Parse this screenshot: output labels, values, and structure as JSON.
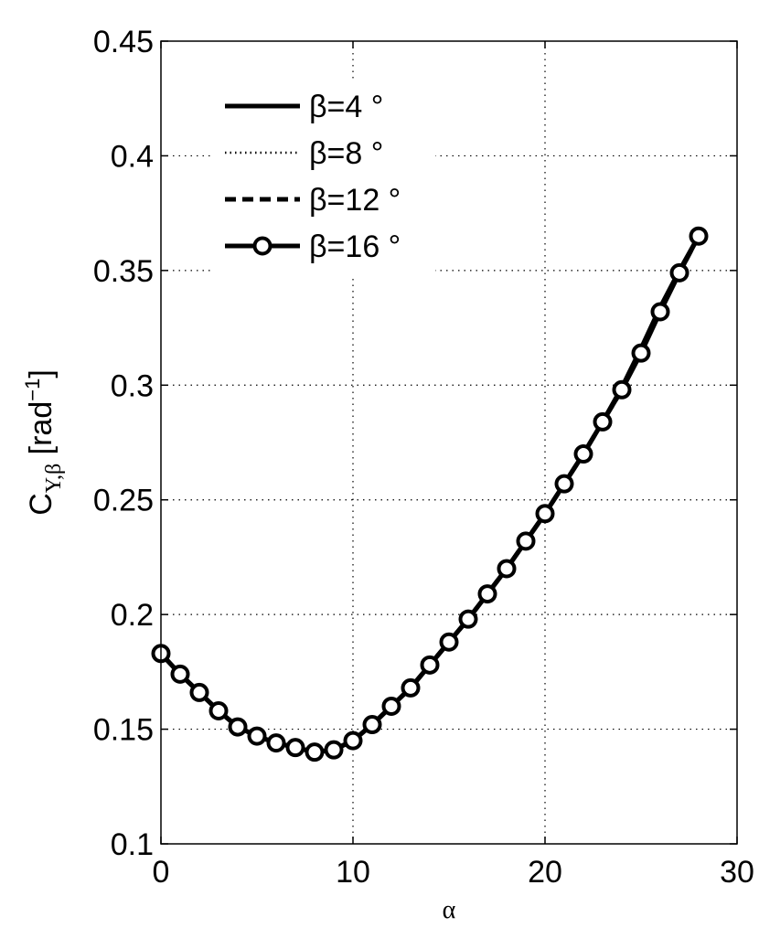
{
  "chart_data": {
    "type": "line",
    "xlabel": "α",
    "ylabel": {
      "main": "C",
      "subscript": "Y,β",
      "unit_open": " [rad",
      "unit_exp": "−1",
      "unit_close": "]"
    },
    "xlim": [
      0,
      30
    ],
    "ylim": [
      0.1,
      0.45
    ],
    "xticks": [
      0,
      10,
      20,
      30
    ],
    "xtick_labels": [
      "0",
      "10",
      "20",
      "30"
    ],
    "yticks": [
      0.1,
      0.15,
      0.2,
      0.25,
      0.3,
      0.35,
      0.4,
      0.45
    ],
    "ytick_labels": [
      "0.1",
      "0.15",
      "0.2",
      "0.25",
      "0.3",
      "0.35",
      "0.4",
      "0.45"
    ],
    "grid": true,
    "legend_placement": "top-left",
    "x": [
      0,
      1,
      2,
      3,
      4,
      5,
      6,
      7,
      8,
      9,
      10,
      11,
      12,
      13,
      14,
      15,
      16,
      17,
      18,
      19,
      20,
      21,
      22,
      23,
      24,
      25,
      26,
      27,
      28
    ],
    "series": [
      {
        "name": "β=4 °",
        "style": "solid",
        "values": [
          0.183,
          0.174,
          0.166,
          0.158,
          0.151,
          0.147,
          0.144,
          0.142,
          0.14,
          0.141,
          0.145,
          0.152,
          0.16,
          0.168,
          0.178,
          0.188,
          0.198,
          0.209,
          0.22,
          0.232,
          0.244,
          0.257,
          0.27,
          0.284,
          0.299,
          0.316,
          0.334,
          0.35,
          0.365
        ]
      },
      {
        "name": "β=8 °",
        "style": "dotted",
        "values": [
          0.183,
          0.174,
          0.166,
          0.158,
          0.151,
          0.147,
          0.144,
          0.142,
          0.14,
          0.141,
          0.145,
          0.152,
          0.16,
          0.168,
          0.178,
          0.188,
          0.198,
          0.209,
          0.22,
          0.232,
          0.244,
          0.257,
          0.27,
          0.284,
          0.299,
          0.315,
          0.333,
          0.349,
          0.365
        ]
      },
      {
        "name": "β=12 °",
        "style": "dashed",
        "values": [
          0.183,
          0.174,
          0.166,
          0.158,
          0.151,
          0.147,
          0.144,
          0.142,
          0.14,
          0.141,
          0.145,
          0.152,
          0.16,
          0.168,
          0.178,
          0.188,
          0.198,
          0.209,
          0.22,
          0.232,
          0.244,
          0.257,
          0.27,
          0.284,
          0.298,
          0.315,
          0.333,
          0.349,
          0.365
        ]
      },
      {
        "name": "β=16 °",
        "style": "solid-circle",
        "values": [
          0.183,
          0.174,
          0.166,
          0.158,
          0.151,
          0.147,
          0.144,
          0.142,
          0.14,
          0.141,
          0.145,
          0.152,
          0.16,
          0.168,
          0.178,
          0.188,
          0.198,
          0.209,
          0.22,
          0.232,
          0.244,
          0.257,
          0.27,
          0.284,
          0.298,
          0.314,
          0.332,
          0.349,
          0.365
        ]
      }
    ]
  }
}
